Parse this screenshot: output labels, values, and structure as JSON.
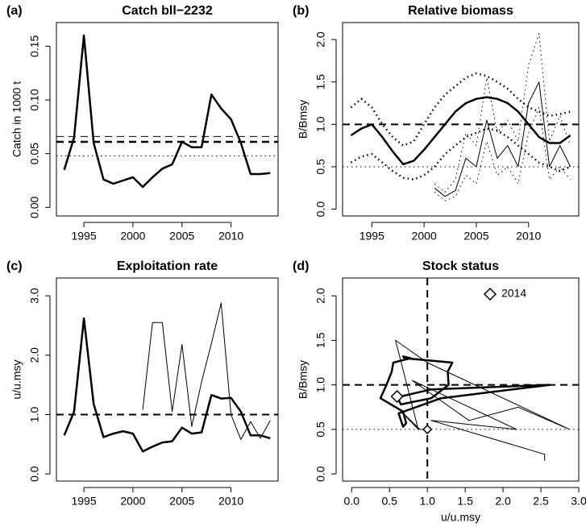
{
  "chart_data": [
    {
      "type": "line",
      "panel_label": "(a)",
      "title": "Catch bll−2232",
      "y_label": "Catch in 1000 t",
      "x": [
        1993,
        1994,
        1995,
        1996,
        1997,
        1998,
        1999,
        2000,
        2001,
        2002,
        2003,
        2004,
        2005,
        2006,
        2007,
        2008,
        2009,
        2010,
        2011,
        2012,
        2013,
        2014
      ],
      "xlim": [
        1992.2,
        2014.8
      ],
      "xticks": [
        1995,
        2000,
        2005,
        2010
      ],
      "ylim": [
        -0.008,
        0.172
      ],
      "yticks": [
        {
          "value": 0,
          "label": "0.00"
        },
        0.05,
        {
          "value": 0.1,
          "label": "0.10"
        },
        0.15
      ],
      "series": [
        {
          "color": "#000000",
          "style": "solid",
          "width": 2.5,
          "values": [
            0.035,
            0.065,
            0.16,
            0.06,
            0.026,
            0.022,
            0.025,
            0.028,
            0.019,
            0.028,
            0.036,
            0.04,
            0.061,
            0.056,
            0.056,
            0.105,
            0.092,
            0.082,
            0.06,
            0.031,
            0.031,
            0.032
          ]
        }
      ],
      "hlines": [
        {
          "value": 0.061,
          "style": "dashed",
          "width": 2.5
        },
        {
          "value": 0.066,
          "style": "dashed",
          "width": 1
        },
        {
          "value": 0.048,
          "style": "dotted",
          "width": 1
        }
      ]
    },
    {
      "type": "line",
      "panel_label": "(b)",
      "title": "Relative biomass",
      "y_label": "B/Bmsy",
      "x": [
        1993,
        1994,
        1995,
        1996,
        1997,
        1998,
        1999,
        2000,
        2001,
        2002,
        2003,
        2004,
        2005,
        2006,
        2007,
        2008,
        2009,
        2010,
        2011,
        2012,
        2013,
        2014
      ],
      "xlim": [
        1992.2,
        2014.8
      ],
      "xticks": [
        1995,
        2000,
        2005,
        2010
      ],
      "ylim": [
        -0.08,
        2.2
      ],
      "yticks": [
        {
          "value": 0,
          "label": "0.0"
        },
        0.5,
        {
          "value": 1,
          "label": "1.0"
        },
        1.5,
        {
          "value": 2,
          "label": "2.0"
        }
      ],
      "series": [
        {
          "color": "#000000",
          "style": "solid",
          "width": 2.5,
          "values": [
            0.87,
            0.95,
            1.0,
            0.85,
            0.68,
            0.53,
            0.57,
            0.7,
            0.85,
            1.0,
            1.15,
            1.25,
            1.3,
            1.32,
            1.3,
            1.25,
            1.15,
            1.0,
            0.85,
            0.78,
            0.78,
            0.87
          ]
        },
        {
          "color": "#000000",
          "style": "dotted",
          "width": 2.5,
          "values": [
            1.2,
            1.3,
            1.2,
            1.0,
            0.85,
            0.75,
            0.8,
            1.0,
            1.2,
            1.35,
            1.45,
            1.55,
            1.6,
            1.57,
            1.5,
            1.42,
            1.3,
            1.2,
            1.15,
            1.1,
            1.12,
            1.15
          ]
        },
        {
          "color": "#000000",
          "style": "dotted",
          "width": 2.5,
          "values": [
            0.55,
            0.62,
            0.65,
            0.55,
            0.45,
            0.37,
            0.35,
            0.4,
            0.5,
            0.65,
            0.75,
            0.85,
            0.9,
            0.95,
            0.93,
            0.85,
            0.75,
            0.65,
            0.55,
            0.5,
            0.45,
            0.5
          ]
        },
        {
          "color": "#000000",
          "style": "solid",
          "width": 1,
          "values": [
            null,
            null,
            null,
            null,
            null,
            null,
            null,
            null,
            0.25,
            0.15,
            0.22,
            0.6,
            0.5,
            1.05,
            0.6,
            0.75,
            0.5,
            1.25,
            1.5,
            0.5,
            0.75,
            0.5
          ]
        },
        {
          "color": "#000000",
          "style": "dotted",
          "width": 1,
          "values": [
            null,
            null,
            null,
            null,
            null,
            null,
            null,
            null,
            0.3,
            0.2,
            0.35,
            0.9,
            0.75,
            1.55,
            0.9,
            1.05,
            0.8,
            1.7,
            2.07,
            0.8,
            1.1,
            0.75
          ]
        },
        {
          "color": "#000000",
          "style": "dotted",
          "width": 1,
          "values": [
            null,
            null,
            null,
            null,
            null,
            null,
            null,
            null,
            0.2,
            0.1,
            0.15,
            0.4,
            0.3,
            0.8,
            0.4,
            0.5,
            0.3,
            0.9,
            1.2,
            0.35,
            0.5,
            0.35
          ]
        }
      ],
      "hlines": [
        {
          "value": 1,
          "style": "dashed",
          "width": 2
        },
        {
          "value": 0.5,
          "style": "dotted",
          "width": 1
        }
      ]
    },
    {
      "type": "line",
      "panel_label": "(c)",
      "title": "Exploitation rate",
      "y_label": "u/u.msy",
      "x": [
        1993,
        1994,
        1995,
        1996,
        1997,
        1998,
        1999,
        2000,
        2001,
        2002,
        2003,
        2004,
        2005,
        2006,
        2007,
        2008,
        2009,
        2010,
        2011,
        2012,
        2013,
        2014
      ],
      "xlim": [
        1992.2,
        2014.8
      ],
      "xticks": [
        1995,
        2000,
        2005,
        2010
      ],
      "ylim": [
        -0.12,
        3.3
      ],
      "yticks": [
        {
          "value": 0,
          "label": "0.0"
        },
        {
          "value": 1,
          "label": "1.0"
        },
        {
          "value": 2,
          "label": "2.0"
        },
        {
          "value": 3,
          "label": "3.0"
        }
      ],
      "series": [
        {
          "color": "#000000",
          "style": "solid",
          "width": 2.5,
          "values": [
            0.65,
            1.05,
            2.62,
            1.18,
            0.62,
            0.68,
            0.72,
            0.68,
            0.38,
            0.46,
            0.53,
            0.55,
            0.78,
            0.68,
            0.7,
            1.33,
            1.27,
            1.28,
            1.05,
            0.65,
            0.65,
            0.6
          ]
        },
        {
          "color": "#000000",
          "style": "solid",
          "width": 1,
          "values": [
            null,
            null,
            null,
            null,
            null,
            null,
            null,
            null,
            1.08,
            2.55,
            2.55,
            1.05,
            2.18,
            0.8,
            1.55,
            2.2,
            2.88,
            1.0,
            0.58,
            0.88,
            0.6,
            0.9
          ]
        }
      ],
      "hlines": [
        {
          "value": 1,
          "style": "dashed",
          "width": 2
        }
      ]
    },
    {
      "type": "line",
      "panel_label": "(d)",
      "title": "Stock status",
      "y_label": "B/Bmsy",
      "x_label": "u/u.msy",
      "marker_label": "2014",
      "xlim": [
        -0.12,
        3.0
      ],
      "xticks": [
        {
          "value": 0,
          "label": "0.0"
        },
        0.5,
        {
          "value": 1,
          "label": "1.0"
        },
        1.5,
        {
          "value": 2,
          "label": "2.0"
        },
        2.5,
        {
          "value": 3,
          "label": "3.0"
        }
      ],
      "ylim": [
        -0.08,
        2.2
      ],
      "yticks": [
        {
          "value": 0,
          "label": "0.0"
        },
        0.5,
        {
          "value": 1,
          "label": "1.0"
        },
        1.5,
        {
          "value": 2,
          "label": "2.0"
        }
      ],
      "series": [
        {
          "color": "#000000",
          "style": "solid",
          "width": 2.5,
          "end_marker": "large",
          "x": [
            0.65,
            1.05,
            2.62,
            1.18,
            0.62,
            0.68,
            0.72,
            0.68,
            0.38,
            0.46,
            0.53,
            0.55,
            0.78,
            0.68,
            0.7,
            1.33,
            1.27,
            1.28,
            1.05,
            0.65,
            0.65,
            0.6
          ],
          "values": [
            0.87,
            0.95,
            1.0,
            0.85,
            0.68,
            0.53,
            0.57,
            0.7,
            0.85,
            1.0,
            1.15,
            1.25,
            1.3,
            1.32,
            1.3,
            1.25,
            1.15,
            1.0,
            0.85,
            0.78,
            0.78,
            0.87
          ]
        },
        {
          "color": "#000000",
          "style": "solid",
          "width": 1,
          "end_marker": "small",
          "x": [
            2.55,
            2.55,
            1.05,
            2.18,
            0.8,
            1.55,
            2.2,
            2.88,
            1.0,
            0.58,
            0.88,
            0.6,
            0.9,
            1.0
          ],
          "values": [
            0.15,
            0.22,
            0.6,
            0.5,
            1.05,
            0.6,
            0.75,
            0.5,
            1.25,
            1.5,
            0.5,
            0.75,
            0.5,
            0.5
          ]
        }
      ],
      "hlines": [
        {
          "value": 1,
          "style": "dashed",
          "width": 2
        },
        {
          "value": 0.5,
          "style": "dotted",
          "width": 1
        }
      ],
      "vlines": [
        {
          "value": 1,
          "style": "dashed",
          "width": 2
        }
      ]
    }
  ]
}
